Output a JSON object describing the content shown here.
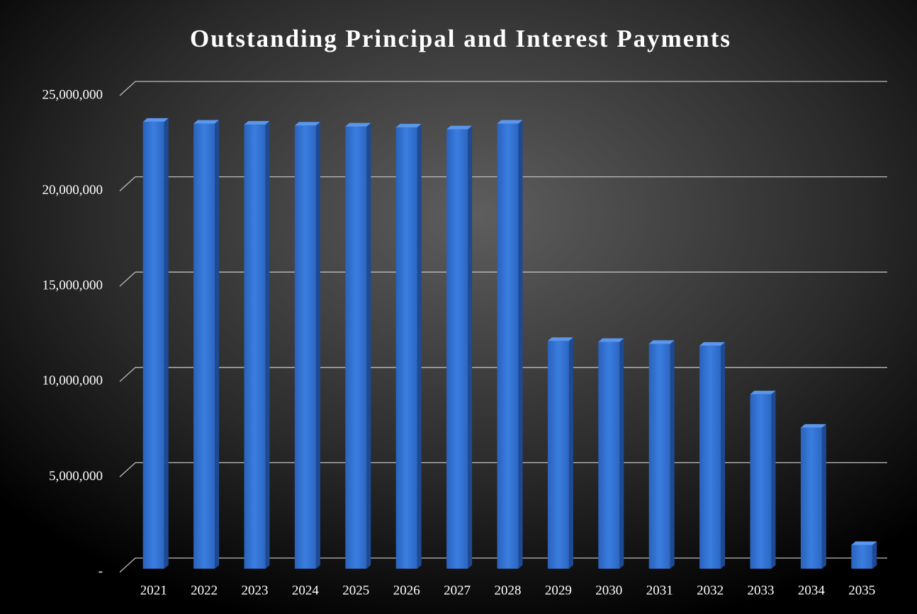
{
  "chart_data": {
    "type": "bar3d",
    "title": "Outstanding Principal and Interest Payments",
    "categories": [
      "2021",
      "2022",
      "2023",
      "2024",
      "2025",
      "2026",
      "2027",
      "2028",
      "2029",
      "2030",
      "2031",
      "2032",
      "2033",
      "2034",
      "2035"
    ],
    "values": [
      24300000,
      24200000,
      24150000,
      24100000,
      24050000,
      24000000,
      23900000,
      24200000,
      12800000,
      12750000,
      12650000,
      12550000,
      10000000,
      8250000,
      2100000
    ],
    "color": "#2f6fcf",
    "ylim": [
      0,
      25000000
    ],
    "yticks": [
      {
        "value": 0,
        "label": "-"
      },
      {
        "value": 5000000,
        "label": "5,000,000"
      },
      {
        "value": 10000000,
        "label": "10,000,000"
      },
      {
        "value": 15000000,
        "label": "15,000,000"
      },
      {
        "value": 20000000,
        "label": "20,000,000"
      },
      {
        "value": 25000000,
        "label": "25,000,000"
      }
    ],
    "grid": true
  }
}
